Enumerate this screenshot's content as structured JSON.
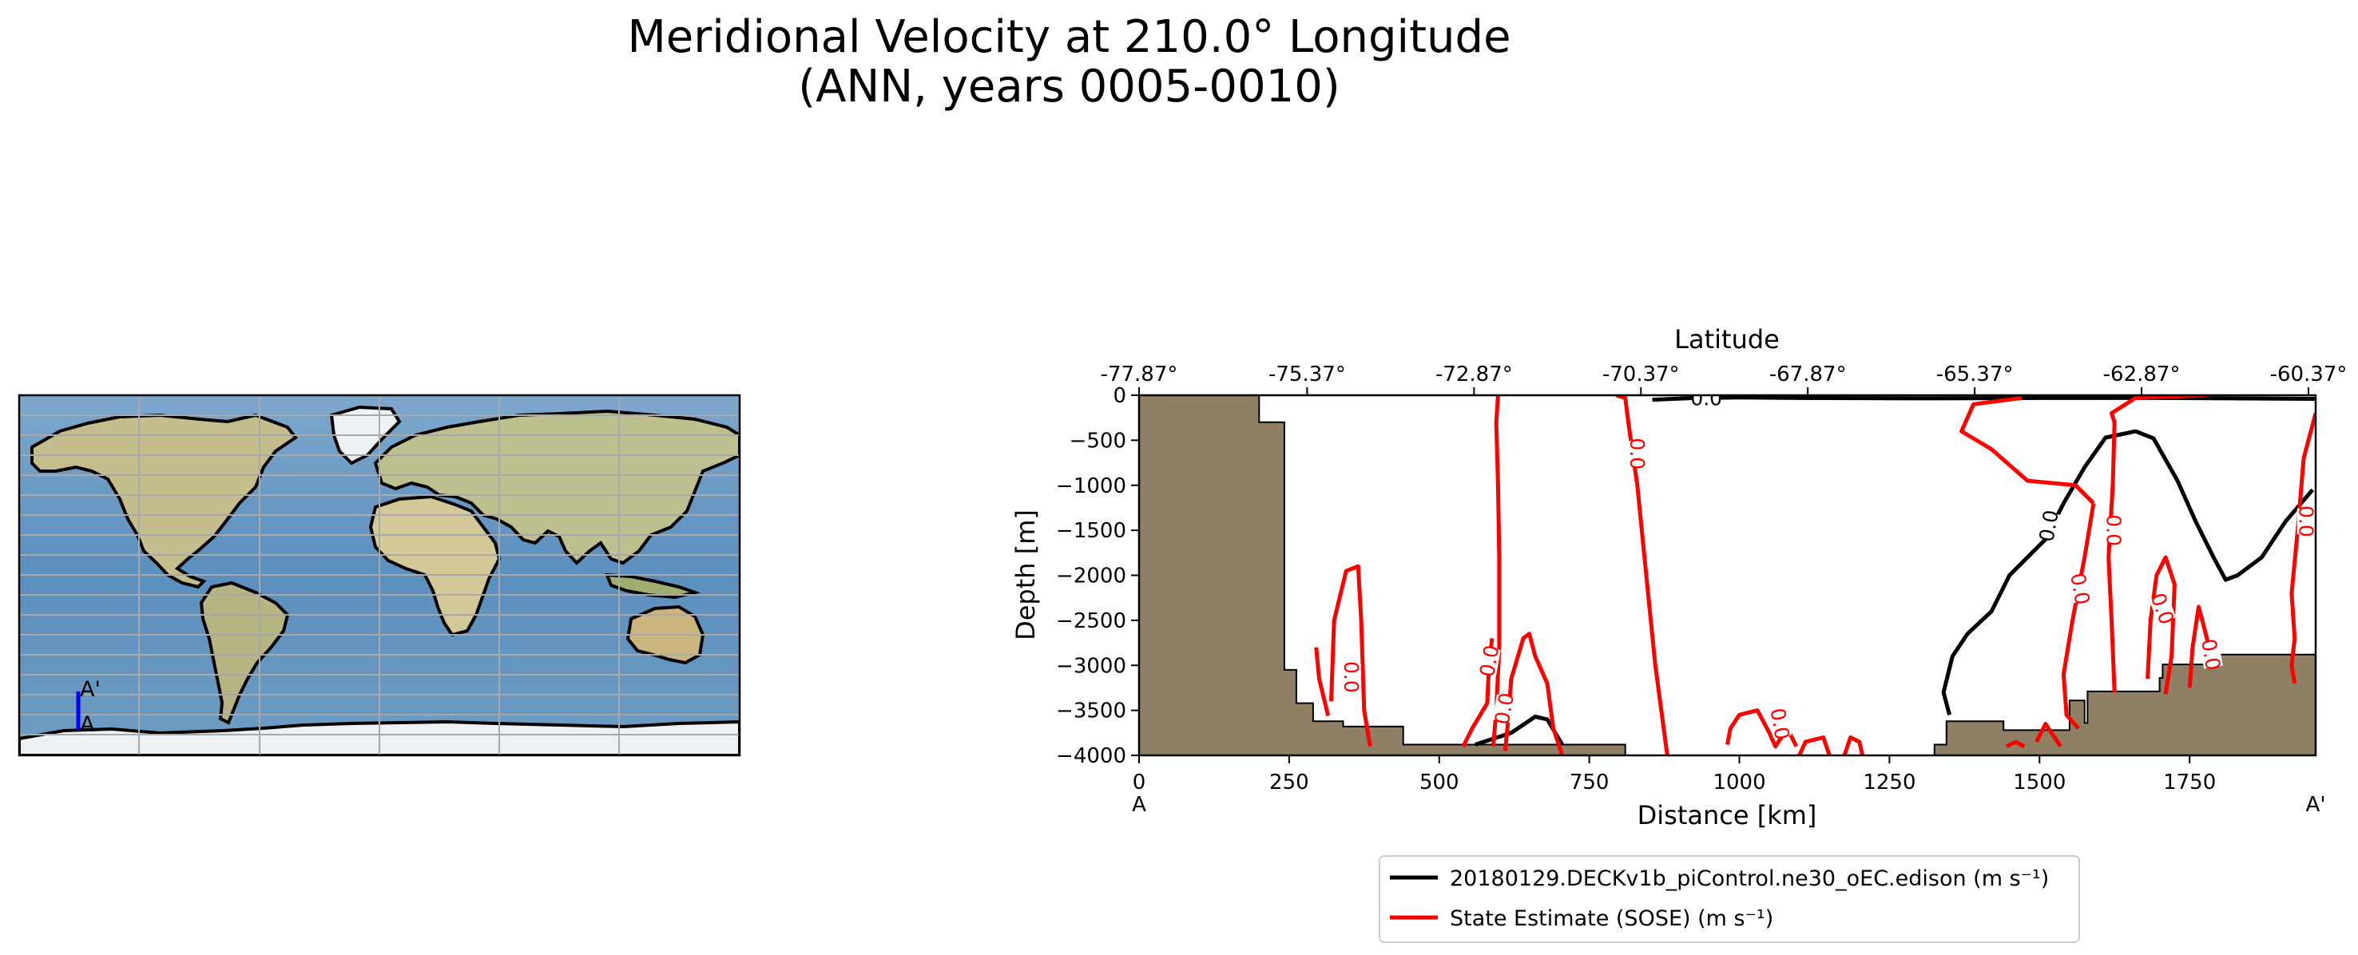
{
  "figure": {
    "title_line1": "Meridional Velocity at 210.0° Longitude",
    "title_line2": "(ANN, years 0005-0010)"
  },
  "map_panel": {
    "label_start": "A",
    "label_end": "A'",
    "section_line_color": "#0000ff",
    "ocean_color": "#5b8fbd",
    "land_color": "#c4be8f",
    "ice_color": "#e8ecef"
  },
  "chart_data": {
    "type": "contour",
    "title": "",
    "xlabel": "Distance [km]",
    "ylabel": "Depth [m]",
    "top_xlabel": "Latitude",
    "xlim": [
      0,
      1960
    ],
    "ylim": [
      -4000,
      0
    ],
    "xticks": [
      0,
      250,
      500,
      750,
      1000,
      1250,
      1500,
      1750
    ],
    "yticks": [
      0,
      -500,
      -1000,
      -1500,
      -2000,
      -2500,
      -3000,
      -3500,
      -4000
    ],
    "top_ticks": [
      {
        "distance": 0,
        "label": "-77.87°"
      },
      {
        "distance": 280,
        "label": "-75.37°"
      },
      {
        "distance": 558,
        "label": "-72.87°"
      },
      {
        "distance": 836,
        "label": "-70.37°"
      },
      {
        "distance": 1114,
        "label": "-67.87°"
      },
      {
        "distance": 1392,
        "label": "-65.37°"
      },
      {
        "distance": 1670,
        "label": "-62.87°"
      },
      {
        "distance": 1948,
        "label": "-60.37°"
      }
    ],
    "section_labels": {
      "start": "A",
      "end": "A'"
    },
    "contour_level": "0.0",
    "bathymetry_color": "#8f7f64",
    "bathymetry": [
      [
        0,
        0
      ],
      [
        200,
        0
      ],
      [
        200,
        -300
      ],
      [
        242,
        -300
      ],
      [
        242,
        -3050
      ],
      [
        262,
        -3050
      ],
      [
        262,
        -3420
      ],
      [
        290,
        -3420
      ],
      [
        290,
        -3620
      ],
      [
        340,
        -3620
      ],
      [
        340,
        -3680
      ],
      [
        440,
        -3680
      ],
      [
        440,
        -3880
      ],
      [
        810,
        -3880
      ],
      [
        810,
        -4000
      ],
      [
        1325,
        -4000
      ],
      [
        1325,
        -3880
      ],
      [
        1345,
        -3880
      ],
      [
        1345,
        -3620
      ],
      [
        1440,
        -3620
      ],
      [
        1440,
        -3720
      ],
      [
        1550,
        -3720
      ],
      [
        1550,
        -3390
      ],
      [
        1575,
        -3390
      ],
      [
        1575,
        -3640
      ],
      [
        1580,
        -3640
      ],
      [
        1580,
        -3290
      ],
      [
        1700,
        -3290
      ],
      [
        1700,
        -3140
      ],
      [
        1705,
        -3140
      ],
      [
        1705,
        -2990
      ],
      [
        1785,
        -2990
      ],
      [
        1785,
        -2880
      ],
      [
        1960,
        -2880
      ],
      [
        1960,
        -4000
      ],
      [
        0,
        -4000
      ]
    ],
    "series": [
      {
        "name": "20180129.DECKv1b_piControl.ne30_oEC.edison (m s⁻¹)",
        "color": "#000000",
        "lines": [
          [
            [
              855,
              -50
            ],
            [
              925,
              -30
            ],
            [
              1000,
              -25
            ],
            [
              1100,
              -30
            ],
            [
              1300,
              -35
            ],
            [
              1500,
              -30
            ],
            [
              1700,
              -30
            ],
            [
              1960,
              -40
            ]
          ],
          [
            [
              1350,
              -3550
            ],
            [
              1340,
              -3300
            ],
            [
              1355,
              -2900
            ],
            [
              1380,
              -2650
            ],
            [
              1420,
              -2400
            ],
            [
              1450,
              -2000
            ],
            [
              1510,
              -1600
            ],
            [
              1540,
              -1200
            ],
            [
              1575,
              -800
            ],
            [
              1610,
              -470
            ],
            [
              1660,
              -400
            ],
            [
              1690,
              -480
            ],
            [
              1730,
              -950
            ],
            [
              1760,
              -1400
            ],
            [
              1790,
              -1800
            ],
            [
              1810,
              -2050
            ],
            [
              1830,
              -2000
            ],
            [
              1870,
              -1800
            ],
            [
              1910,
              -1400
            ],
            [
              1955,
              -1050
            ]
          ],
          [
            [
              560,
              -3880
            ],
            [
              620,
              -3750
            ],
            [
              660,
              -3570
            ],
            [
              680,
              -3600
            ],
            [
              705,
              -3880
            ]
          ]
        ]
      },
      {
        "name": "State Estimate (SOSE) (m s⁻¹)",
        "color": "#ff0000",
        "lines": [
          [
            [
              590,
              -3900
            ],
            [
              595,
              -3500
            ],
            [
              600,
              -2800
            ],
            [
              600,
              -1800
            ],
            [
              598,
              -1000
            ],
            [
              595,
              -300
            ],
            [
              598,
              0
            ]
          ],
          [
            [
              795,
              0
            ],
            [
              810,
              -30
            ],
            [
              815,
              -300
            ],
            [
              830,
              -1000
            ],
            [
              845,
              -2000
            ],
            [
              860,
              -3000
            ],
            [
              880,
              -4000
            ]
          ],
          [
            [
              540,
              -3900
            ],
            [
              555,
              -3700
            ],
            [
              580,
              -3420
            ],
            [
              583,
              -3000
            ],
            [
              588,
              -2700
            ]
          ],
          [
            [
              610,
              -3950
            ],
            [
              615,
              -3600
            ],
            [
              620,
              -3150
            ],
            [
              640,
              -2700
            ],
            [
              650,
              -2650
            ],
            [
              660,
              -2900
            ],
            [
              680,
              -3200
            ],
            [
              690,
              -3700
            ],
            [
              705,
              -4000
            ]
          ],
          [
            [
              1960,
              -200
            ],
            [
              1940,
              -700
            ],
            [
              1930,
              -1500
            ],
            [
              1920,
              -2200
            ],
            [
              1925,
              -2700
            ],
            [
              1920,
              -3000
            ],
            [
              1925,
              -3200
            ]
          ],
          [
            [
              1625,
              -3300
            ],
            [
              1620,
              -2500
            ],
            [
              1615,
              -1800
            ],
            [
              1622,
              -1000
            ],
            [
              1625,
              -300
            ],
            [
              1620,
              -200
            ],
            [
              1660,
              -30
            ],
            [
              1780,
              0
            ]
          ],
          [
            [
              1590,
              -1200
            ],
            [
              1575,
              -1800
            ],
            [
              1555,
              -2500
            ],
            [
              1540,
              -3100
            ],
            [
              1545,
              -3550
            ],
            [
              1565,
              -3700
            ]
          ],
          [
            [
              1470,
              -30
            ],
            [
              1390,
              -100
            ],
            [
              1370,
              -400
            ],
            [
              1420,
              -600
            ],
            [
              1480,
              -950
            ],
            [
              1560,
              -1000
            ],
            [
              1590,
              -1200
            ]
          ],
          [
            [
              1680,
              -3150
            ],
            [
              1685,
              -2500
            ],
            [
              1695,
              -2000
            ],
            [
              1710,
              -1800
            ],
            [
              1725,
              -2100
            ],
            [
              1720,
              -2900
            ],
            [
              1710,
              -3320
            ]
          ],
          [
            [
              1750,
              -3250
            ],
            [
              1755,
              -2800
            ],
            [
              1765,
              -2350
            ],
            [
              1775,
              -2600
            ],
            [
              1790,
              -3000
            ]
          ],
          [
            [
              320,
              -3400
            ],
            [
              325,
              -2500
            ],
            [
              345,
              -1950
            ],
            [
              365,
              -1900
            ],
            [
              370,
              -2500
            ],
            [
              375,
              -3500
            ],
            [
              385,
              -3900
            ]
          ],
          [
            [
              295,
              -2800
            ],
            [
              300,
              -3150
            ],
            [
              315,
              -3560
            ]
          ],
          [
            [
              980,
              -3880
            ],
            [
              985,
              -3700
            ],
            [
              1000,
              -3550
            ],
            [
              1030,
              -3500
            ],
            [
              1050,
              -3750
            ],
            [
              1060,
              -3900
            ],
            [
              1080,
              -3700
            ],
            [
              1095,
              -3900
            ]
          ],
          [
            [
              1100,
              -4000
            ],
            [
              1110,
              -3850
            ],
            [
              1140,
              -3800
            ],
            [
              1150,
              -4000
            ]
          ],
          [
            [
              1175,
              -4000
            ],
            [
              1185,
              -3800
            ],
            [
              1200,
              -3850
            ],
            [
              1205,
              -4000
            ]
          ],
          [
            [
              1445,
              -3900
            ],
            [
              1460,
              -3850
            ],
            [
              1475,
              -3900
            ]
          ],
          [
            [
              1495,
              -3850
            ],
            [
              1510,
              -3650
            ],
            [
              1525,
              -3800
            ],
            [
              1535,
              -3900
            ]
          ]
        ]
      }
    ],
    "contour_labels": [
      {
        "x": 830,
        "y": -650,
        "text": "0.0",
        "color": "#ff0000",
        "rotate": 90
      },
      {
        "x": 1624,
        "y": -1500,
        "text": "0.0",
        "color": "#ff0000",
        "rotate": 90
      },
      {
        "x": 1568,
        "y": -2150,
        "text": "0.0",
        "color": "#ff0000",
        "rotate": 80
      },
      {
        "x": 1705,
        "y": -2370,
        "text": "0.0",
        "color": "#ff0000",
        "rotate": 70
      },
      {
        "x": 1786,
        "y": -2880,
        "text": "0.0",
        "color": "#ff0000",
        "rotate": 80
      },
      {
        "x": 1945,
        "y": -1400,
        "text": "0.0",
        "color": "#ff0000",
        "rotate": 90
      },
      {
        "x": 583,
        "y": -2950,
        "text": "0.0",
        "color": "#ff0000",
        "rotate": -80
      },
      {
        "x": 608,
        "y": -3480,
        "text": "0.0",
        "color": "#ff0000",
        "rotate": -80
      },
      {
        "x": 354,
        "y": -3130,
        "text": "0.0",
        "color": "#ff0000",
        "rotate": 90
      },
      {
        "x": 1068,
        "y": -3650,
        "text": "0.0",
        "color": "#ff0000",
        "rotate": 80
      },
      {
        "x": 1515,
        "y": -1450,
        "text": "0.0",
        "color": "#000000",
        "rotate": -80
      },
      {
        "x": 945,
        "y": -30,
        "text": "0.0",
        "color": "#000000",
        "rotate": 0
      }
    ],
    "legend": {
      "placement": "bottom"
    }
  }
}
